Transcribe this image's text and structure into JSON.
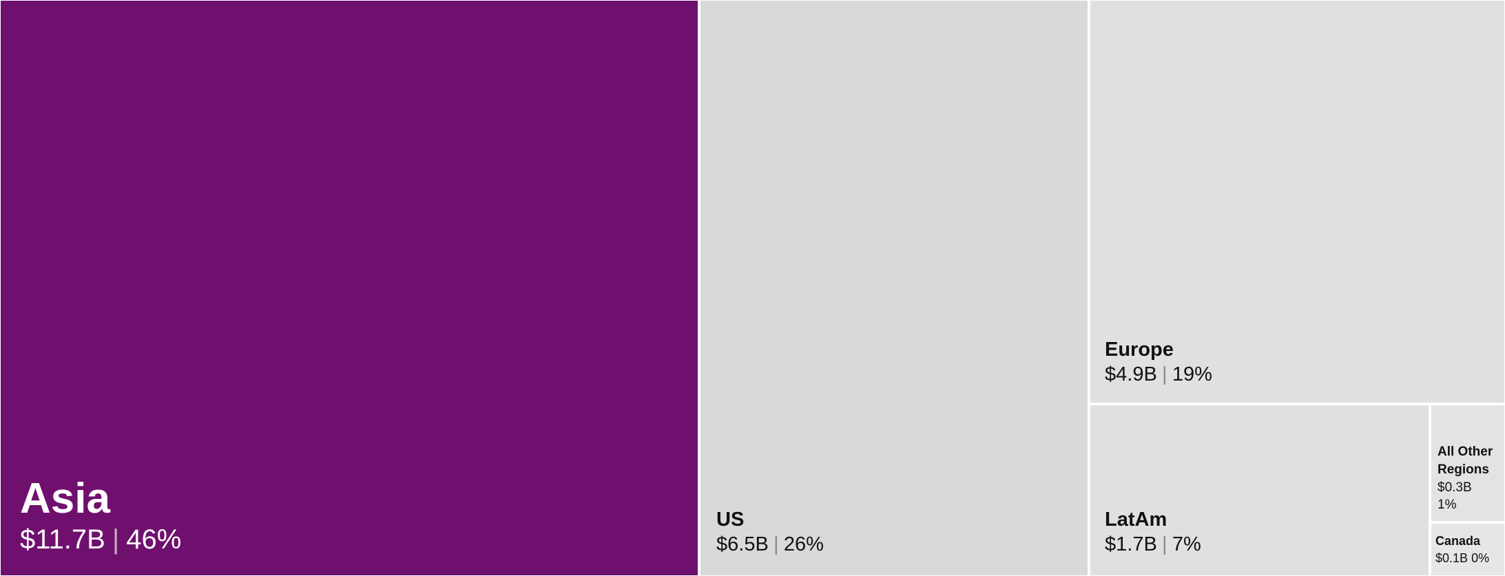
{
  "chart_data": {
    "type": "treemap",
    "unit": "$B",
    "tiles": [
      {
        "key": "asia",
        "name": "Asia",
        "value": 11.7,
        "value_label": "$11.7B",
        "percent": 46,
        "percent_label": "46%",
        "color": "#70106e",
        "highlighted": true
      },
      {
        "key": "us",
        "name": "US",
        "value": 6.5,
        "value_label": "$6.5B",
        "percent": 26,
        "percent_label": "26%",
        "color": "#d9d9d9"
      },
      {
        "key": "europe",
        "name": "Europe",
        "value": 4.9,
        "value_label": "$4.9B",
        "percent": 19,
        "percent_label": "19%",
        "color": "#e0e0e0"
      },
      {
        "key": "latam",
        "name": "LatAm",
        "value": 1.7,
        "value_label": "$1.7B",
        "percent": 7,
        "percent_label": "7%",
        "color": "#e0e0e0"
      },
      {
        "key": "other",
        "name": "All Other Regions",
        "value": 0.3,
        "value_label": "$0.3B",
        "percent": 1,
        "percent_label": "1%",
        "color": "#e3e3e3"
      },
      {
        "key": "canada",
        "name": "Canada",
        "value": 0.1,
        "value_label": "$0.1B",
        "percent": 0,
        "percent_label": "0%",
        "color": "#e6e6e6"
      }
    ],
    "separator": "|"
  }
}
